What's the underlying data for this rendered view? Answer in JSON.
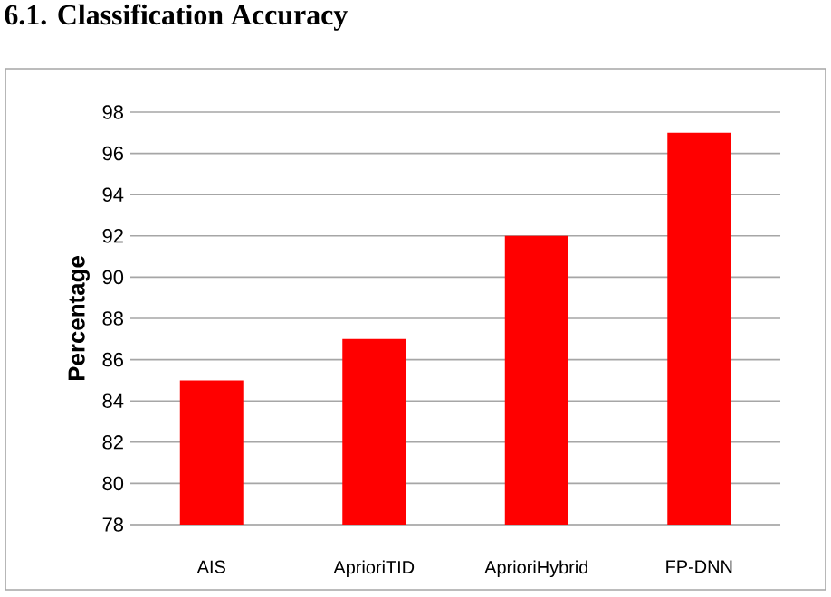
{
  "chart_data": {
    "type": "bar",
    "title": "6.1. Classification Accuracy",
    "ylabel": "Percentage",
    "categories": [
      "AIS",
      "AprioriTID",
      "AprioriHybrid",
      "FP-DNN"
    ],
    "values": [
      85,
      87,
      92,
      97
    ],
    "color": "#ff0000",
    "ylim": [
      78,
      98
    ],
    "yticks": [
      78,
      80,
      82,
      84,
      86,
      88,
      90,
      92,
      94,
      96,
      98
    ],
    "grid": "y"
  }
}
